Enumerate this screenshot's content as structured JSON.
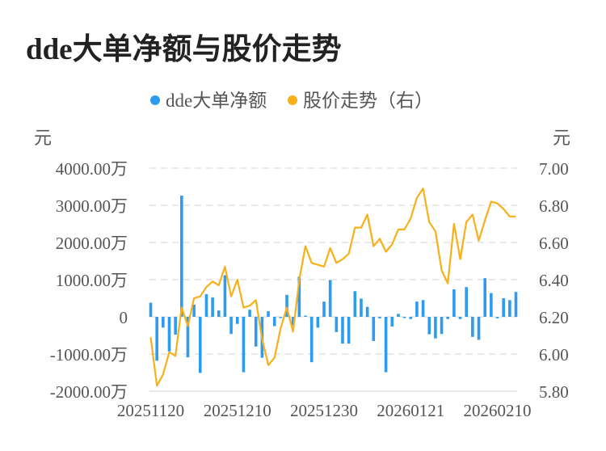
{
  "title": "dde大单净额与股价走势",
  "chart_data": {
    "type": "bar+line",
    "legend": {
      "placement": "top-center"
    },
    "grid": true,
    "left_axis": {
      "unit": "元",
      "ylim": [
        -2000,
        4000
      ],
      "ticks": [
        "4000.00万",
        "3000.00万",
        "2000.00万",
        "1000.00万",
        "0",
        "-1000.00万",
        "-2000.00万"
      ],
      "tick_values": [
        4000,
        3000,
        2000,
        1000,
        0,
        -1000,
        -2000
      ]
    },
    "right_axis": {
      "unit": "元",
      "ylim": [
        5.8,
        7.0
      ],
      "ticks": [
        "7.00",
        "6.80",
        "6.60",
        "6.40",
        "6.20",
        "6.00",
        "5.80"
      ],
      "tick_values": [
        7.0,
        6.8,
        6.6,
        6.4,
        6.2,
        6.0,
        5.8
      ]
    },
    "x_ticks": [
      {
        "index": 0,
        "label": "20251120"
      },
      {
        "index": 14,
        "label": "20251210"
      },
      {
        "index": 28,
        "label": "20251230"
      },
      {
        "index": 42,
        "label": "20260121"
      },
      {
        "index": 56,
        "label": "20260210"
      }
    ],
    "series": [
      {
        "name": "dde大单净额",
        "type": "bar",
        "axis": "left",
        "unit": "万元",
        "color": "#2d9cf0",
        "values": [
          380,
          -1180,
          -290,
          -930,
          -480,
          3260,
          -1090,
          330,
          -1510,
          610,
          520,
          170,
          1120,
          -460,
          -190,
          -1490,
          190,
          -800,
          -1100,
          150,
          -250,
          -10,
          590,
          -240,
          1080,
          10,
          -1220,
          -290,
          410,
          990,
          -410,
          -720,
          -720,
          690,
          490,
          270,
          -650,
          -40,
          -1490,
          -260,
          80,
          -10,
          -60,
          410,
          450,
          -470,
          -580,
          -460,
          -60,
          740,
          -60,
          800,
          -540,
          -620,
          1040,
          640,
          -40,
          500,
          450,
          670
        ]
      },
      {
        "name": "股价走势（右）",
        "type": "line",
        "axis": "right",
        "color": "#f7b01a",
        "values": [
          6.09,
          5.83,
          5.89,
          6.01,
          5.99,
          6.25,
          6.15,
          6.3,
          6.31,
          6.36,
          6.39,
          6.37,
          6.47,
          6.31,
          6.4,
          6.25,
          6.26,
          6.29,
          6.08,
          5.94,
          5.98,
          6.14,
          6.25,
          6.12,
          6.4,
          6.58,
          6.49,
          6.48,
          6.47,
          6.57,
          6.49,
          6.51,
          6.54,
          6.68,
          6.68,
          6.75,
          6.58,
          6.62,
          6.55,
          6.59,
          6.67,
          6.67,
          6.73,
          6.84,
          6.89,
          6.71,
          6.66,
          6.45,
          6.38,
          6.7,
          6.51,
          6.71,
          6.75,
          6.61,
          6.72,
          6.82,
          6.81,
          6.78,
          6.74,
          6.74
        ]
      }
    ]
  }
}
